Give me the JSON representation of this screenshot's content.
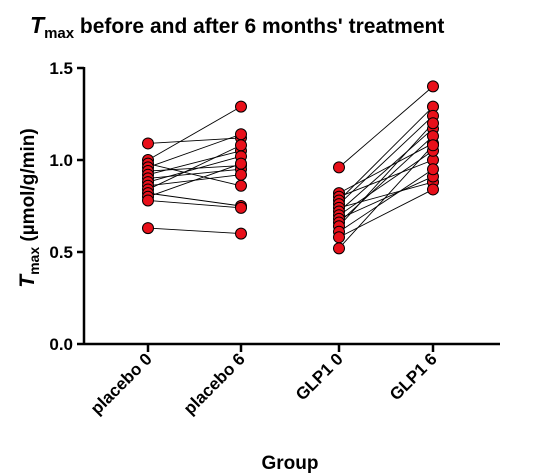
{
  "chart_data": {
    "type": "scatter",
    "title": {
      "symbol": "T",
      "subscript": "max",
      "rest": " before and after 6 months' treatment"
    },
    "ylabel": {
      "symbol": "T",
      "subscript": "max",
      "rest": " (µmol/g/min)"
    },
    "xlabel": "Group",
    "categories": [
      "placebo 0",
      "placebo 6",
      "GLP1 0",
      "GLP1 6"
    ],
    "ylim": [
      0.0,
      1.5
    ],
    "yticks": [
      "0.0",
      "0.5",
      "1.0",
      "1.5"
    ],
    "marker_color": "#e8101a",
    "line_color": "#000000",
    "groups": [
      {
        "name": "placebo",
        "pairs": [
          [
            1.09,
            1.12
          ],
          [
            1.0,
            1.29
          ],
          [
            0.98,
            0.86
          ],
          [
            0.96,
            1.14
          ],
          [
            0.94,
            0.97
          ],
          [
            0.92,
            1.05
          ],
          [
            0.9,
            0.95
          ],
          [
            0.88,
            1.02
          ],
          [
            0.86,
            0.92
          ],
          [
            0.84,
            1.08
          ],
          [
            0.82,
            0.75
          ],
          [
            0.8,
            0.98
          ],
          [
            0.78,
            0.74
          ],
          [
            0.63,
            0.6
          ]
        ]
      },
      {
        "name": "GLP1",
        "pairs": [
          [
            0.96,
            1.4
          ],
          [
            0.82,
            1.09
          ],
          [
            0.8,
            1.0
          ],
          [
            0.78,
            1.29
          ],
          [
            0.76,
            1.24
          ],
          [
            0.74,
            0.88
          ],
          [
            0.72,
            1.17
          ],
          [
            0.7,
            1.05
          ],
          [
            0.68,
            0.91
          ],
          [
            0.66,
            1.13
          ],
          [
            0.64,
            1.2
          ],
          [
            0.61,
            0.95
          ],
          [
            0.58,
            0.84
          ],
          [
            0.52,
            1.08
          ]
        ]
      }
    ]
  }
}
